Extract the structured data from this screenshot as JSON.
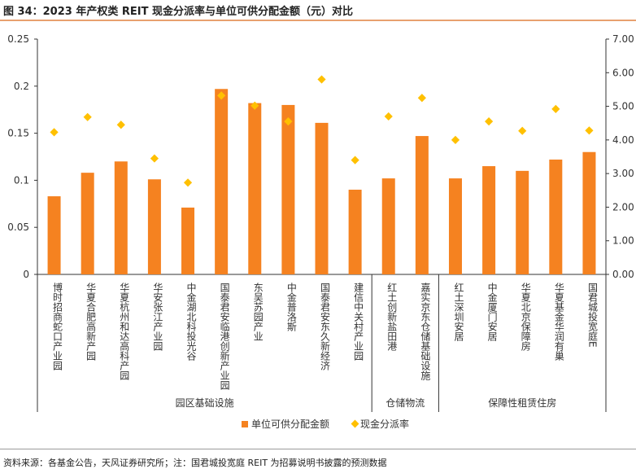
{
  "header": {
    "title": "图 34：2023 年产权类 REIT 现金分派率与单位可供分配金额（元）对比"
  },
  "footer": {
    "source": "资料来源：各基金公告，天风证券研究所；注：国君城投宽庭 REIT 为招募说明书披露的预测数据"
  },
  "colors": {
    "bar": "#f58220",
    "marker": "#ffc000",
    "axis": "#333333",
    "accent_line": "#e8a16f"
  },
  "chart_data": {
    "type": "bar",
    "categories": [
      "博时招商蛇口产业园",
      "华夏合肥高新产园",
      "华夏杭州和达高科产园",
      "华安张江产业园",
      "中金湖北科投光谷",
      "国泰君安临港创新产业园",
      "东吴苏园产业",
      "中金普洛斯",
      "国泰君安东久新经济",
      "建信中关村产业园",
      "红土创新盐田港",
      "嘉实京东仓储基础设施",
      "红土深圳安居",
      "中金厦门安居",
      "华夏北京保障房",
      "华夏基金华润有巢",
      "国君城投宽庭E"
    ],
    "series": [
      {
        "name": "单位可供分配金额",
        "type": "bar",
        "axis": "left",
        "values": [
          0.083,
          0.108,
          0.12,
          0.101,
          0.071,
          0.197,
          0.182,
          0.18,
          0.161,
          0.09,
          0.102,
          0.147,
          0.102,
          0.115,
          0.11,
          0.122,
          0.13
        ]
      },
      {
        "name": "现金分派率",
        "type": "scatter",
        "axis": "right",
        "values": [
          4.23,
          4.68,
          4.45,
          3.45,
          2.73,
          5.32,
          5.02,
          4.55,
          5.8,
          3.4,
          4.7,
          5.25,
          4.0,
          4.55,
          4.27,
          4.92,
          4.28
        ]
      }
    ],
    "groups": [
      {
        "label": "园区基础设施",
        "count": 10
      },
      {
        "label": "仓储物流",
        "count": 2
      },
      {
        "label": "保障性租赁住房",
        "count": 5
      }
    ],
    "ylim_left": [
      0,
      0.25
    ],
    "yticks_left": [
      "0",
      "0.05",
      "0.1",
      "0.15",
      "0.2",
      "0.25"
    ],
    "ylim_right": [
      0,
      7
    ],
    "yticks_right": [
      "0.00",
      "1.00",
      "2.00",
      "3.00",
      "4.00",
      "5.00",
      "6.00",
      "7.00"
    ],
    "xlabel": "",
    "ylabel": "",
    "grid": false,
    "legend_position": "bottom"
  }
}
